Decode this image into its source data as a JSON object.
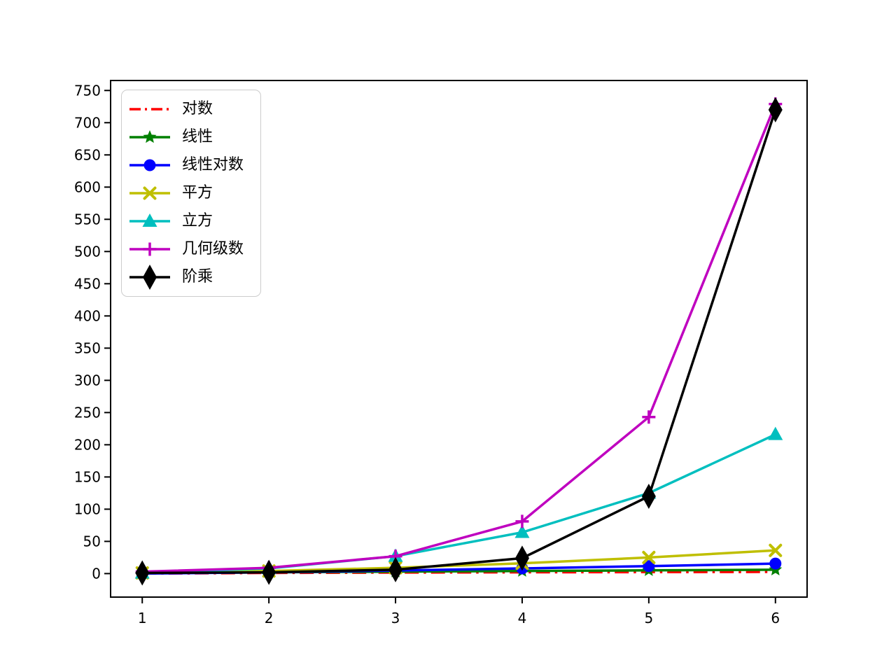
{
  "chart_data": {
    "type": "line",
    "title": "",
    "xlabel": "",
    "ylabel": "",
    "grid": false,
    "legend_position": "upper-left",
    "x": [
      1,
      2,
      3,
      4,
      5,
      6
    ],
    "xlim": [
      0.75,
      6.25
    ],
    "ylim": [
      -36.5,
      765.5
    ],
    "xticks": [
      "1",
      "2",
      "3",
      "4",
      "5",
      "6"
    ],
    "yticks": [
      "0",
      "50",
      "100",
      "150",
      "200",
      "250",
      "300",
      "350",
      "400",
      "450",
      "500",
      "550",
      "600",
      "650",
      "700",
      "750"
    ],
    "ytick_values": [
      0,
      50,
      100,
      150,
      200,
      250,
      300,
      350,
      400,
      450,
      500,
      550,
      600,
      650,
      700,
      750
    ],
    "series": [
      {
        "id": "logarithm",
        "name": "对数",
        "color": "#ff0000",
        "linestyle": "dashdot",
        "marker": "none",
        "values": [
          0,
          1,
          1.585,
          2,
          2.322,
          2.585
        ]
      },
      {
        "id": "linear",
        "name": "线性",
        "color": "#008000",
        "linestyle": "solid",
        "marker": "star",
        "values": [
          1,
          2,
          3,
          4,
          5,
          6
        ]
      },
      {
        "id": "linearithmic",
        "name": "线性对数",
        "color": "#0000ff",
        "linestyle": "solid",
        "marker": "circle",
        "values": [
          0,
          2,
          4.755,
          8,
          11.61,
          15.51
        ]
      },
      {
        "id": "square",
        "name": "平方",
        "color": "#bfbf00",
        "linestyle": "solid",
        "marker": "x",
        "values": [
          1,
          4,
          9,
          16,
          25,
          36
        ]
      },
      {
        "id": "cube",
        "name": "立方",
        "color": "#00bfbf",
        "linestyle": "solid",
        "marker": "triangle-up",
        "values": [
          1,
          8,
          27,
          64,
          125,
          216
        ]
      },
      {
        "id": "geometric",
        "name": "几何级数",
        "color": "#bf00bf",
        "linestyle": "solid",
        "marker": "plus",
        "values": [
          3,
          9,
          27,
          81,
          243,
          729
        ]
      },
      {
        "id": "factorial",
        "name": "阶乘",
        "color": "#000000",
        "linestyle": "solid",
        "marker": "thin-diamond",
        "values": [
          1,
          2,
          6,
          24,
          120,
          720
        ]
      }
    ]
  },
  "legend": {
    "entries": [
      "对数",
      "线性",
      "线性对数",
      "平方",
      "立方",
      "几何级数",
      "阶乘"
    ]
  }
}
